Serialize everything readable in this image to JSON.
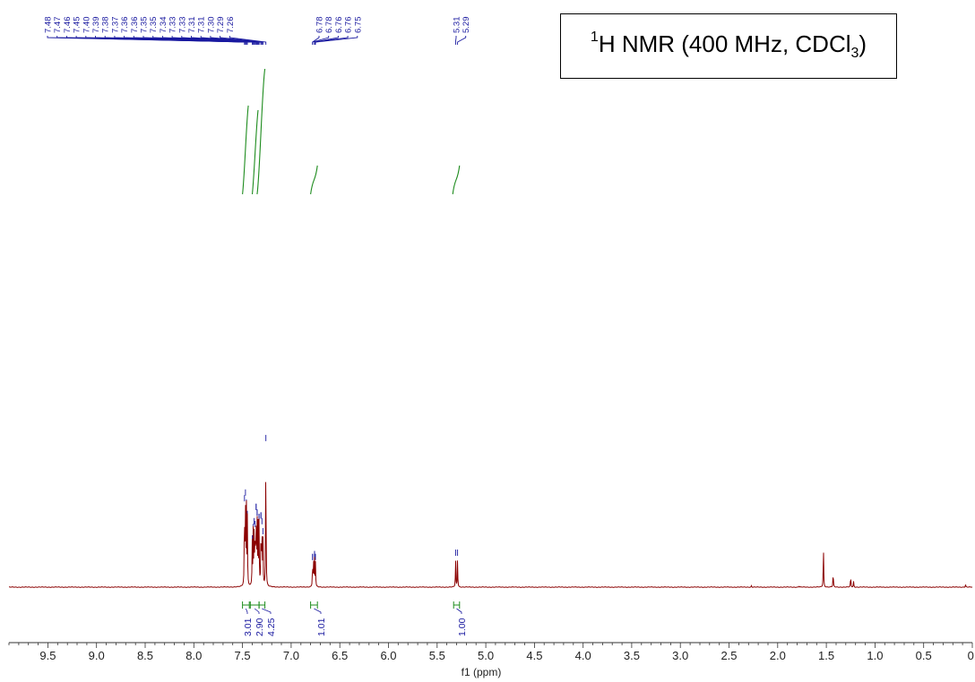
{
  "title": {
    "prefix_sup": "1",
    "text": "H NMR (400 MHz, CDCl",
    "sub": "3",
    "suffix": ")"
  },
  "chart_data": {
    "type": "line",
    "xlabel": "f1 (ppm)",
    "xlim": [
      9.9,
      0.0
    ],
    "x_ticks": [
      "9.5",
      "9.0",
      "8.5",
      "8.0",
      "7.5",
      "7.0",
      "6.5",
      "6.0",
      "5.5",
      "5.0",
      "4.5",
      "4.0",
      "3.5",
      "3.0",
      "2.5",
      "2.0",
      "1.5",
      "1.0",
      "0.5",
      "0."
    ],
    "peaks": [
      {
        "ppm": 7.48,
        "h": 0.58
      },
      {
        "ppm": 7.47,
        "h": 0.62
      },
      {
        "ppm": 7.46,
        "h": 0.55
      },
      {
        "ppm": 7.45,
        "h": 0.47
      },
      {
        "ppm": 7.4,
        "h": 0.3
      },
      {
        "ppm": 7.39,
        "h": 0.38
      },
      {
        "ppm": 7.38,
        "h": 0.42
      },
      {
        "ppm": 7.37,
        "h": 0.4
      },
      {
        "ppm": 7.36,
        "h": 0.52
      },
      {
        "ppm": 7.35,
        "h": 0.48
      },
      {
        "ppm": 7.34,
        "h": 0.4
      },
      {
        "ppm": 7.33,
        "h": 0.45
      },
      {
        "ppm": 7.31,
        "h": 0.46
      },
      {
        "ppm": 7.3,
        "h": 0.42
      },
      {
        "ppm": 7.29,
        "h": 0.35
      },
      {
        "ppm": 7.26,
        "h": 1.0
      },
      {
        "ppm": 6.78,
        "h": 0.17
      },
      {
        "ppm": 6.77,
        "h": 0.19
      },
      {
        "ppm": 6.76,
        "h": 0.19
      },
      {
        "ppm": 6.75,
        "h": 0.17
      },
      {
        "ppm": 5.31,
        "h": 0.2
      },
      {
        "ppm": 5.29,
        "h": 0.2
      },
      {
        "ppm": 2.27,
        "h": 0.01
      },
      {
        "ppm": 1.78,
        "h": 0.01
      },
      {
        "ppm": 1.53,
        "h": 0.3
      },
      {
        "ppm": 1.43,
        "h": 0.11
      },
      {
        "ppm": 1.25,
        "h": 0.08
      },
      {
        "ppm": 1.22,
        "h": 0.04
      },
      {
        "ppm": 0.07,
        "h": 0.02
      }
    ],
    "peak_labels": {
      "group1": {
        "labels": [
          "7.48",
          "7.47",
          "7.46",
          "7.45",
          "7.40",
          "7.39",
          "7.38",
          "7.37",
          "7.36",
          "7.36",
          "7.35",
          "7.35",
          "7.34",
          "7.33",
          "7.33",
          "7.31",
          "7.31",
          "7.30",
          "7.29",
          "7.26"
        ],
        "ppm": [
          7.48,
          7.47,
          7.46,
          7.45,
          7.4,
          7.39,
          7.38,
          7.37,
          7.36,
          7.36,
          7.35,
          7.35,
          7.34,
          7.33,
          7.33,
          7.31,
          7.31,
          7.3,
          7.29,
          7.26
        ]
      },
      "group2": {
        "labels": [
          "6.78",
          "6.78",
          "6.76",
          "6.76",
          "6.75"
        ],
        "ppm": [
          6.78,
          6.78,
          6.76,
          6.76,
          6.75
        ]
      },
      "group3": {
        "labels": [
          "5.31",
          "5.29"
        ],
        "ppm": [
          5.31,
          5.29
        ]
      }
    },
    "integrals": [
      {
        "from": 7.5,
        "to": 7.43,
        "value": "3.01"
      },
      {
        "from": 7.42,
        "to": 7.33,
        "value": "2.90"
      },
      {
        "from": 7.33,
        "to": 7.27,
        "value": "4.25"
      },
      {
        "from": 6.8,
        "to": 6.73,
        "value": "1.01"
      },
      {
        "from": 5.33,
        "to": 5.27,
        "value": "1.00"
      }
    ],
    "colors": {
      "spectrum": "#8b0000",
      "integral": "#1e8c1e",
      "label": "#1a1aa0",
      "axis": "#333333"
    }
  }
}
